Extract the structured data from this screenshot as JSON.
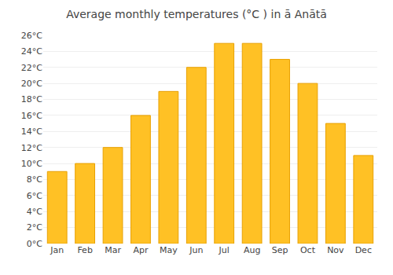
{
  "chart_data": {
    "type": "bar",
    "title": "Average monthly temperatures (°C ) in ā Anātā",
    "categories": [
      "Jan",
      "Feb",
      "Mar",
      "Apr",
      "May",
      "Jun",
      "Jul",
      "Aug",
      "Sep",
      "Oct",
      "Nov",
      "Dec"
    ],
    "values": [
      9,
      10,
      12,
      16,
      19,
      22,
      25,
      25,
      23,
      20,
      15,
      11
    ],
    "color": "#FFC125",
    "ylim": [
      0,
      26
    ],
    "yticks": [
      {
        "value": 0,
        "label": "0°C"
      },
      {
        "value": 2,
        "label": "2°C"
      },
      {
        "value": 4,
        "label": "4°C"
      },
      {
        "value": 6,
        "label": "6°C"
      },
      {
        "value": 8,
        "label": "8°C"
      },
      {
        "value": 10,
        "label": "10°C"
      },
      {
        "value": 12,
        "label": "12°C"
      },
      {
        "value": 14,
        "label": "14°C"
      },
      {
        "value": 16,
        "label": "16°C"
      },
      {
        "value": 18,
        "label": "18°C"
      },
      {
        "value": 20,
        "label": "20°C"
      },
      {
        "value": 22,
        "label": "22°C"
      },
      {
        "value": 24,
        "label": "24°C"
      },
      {
        "value": 26,
        "label": "26°C"
      }
    ],
    "grid": true
  }
}
